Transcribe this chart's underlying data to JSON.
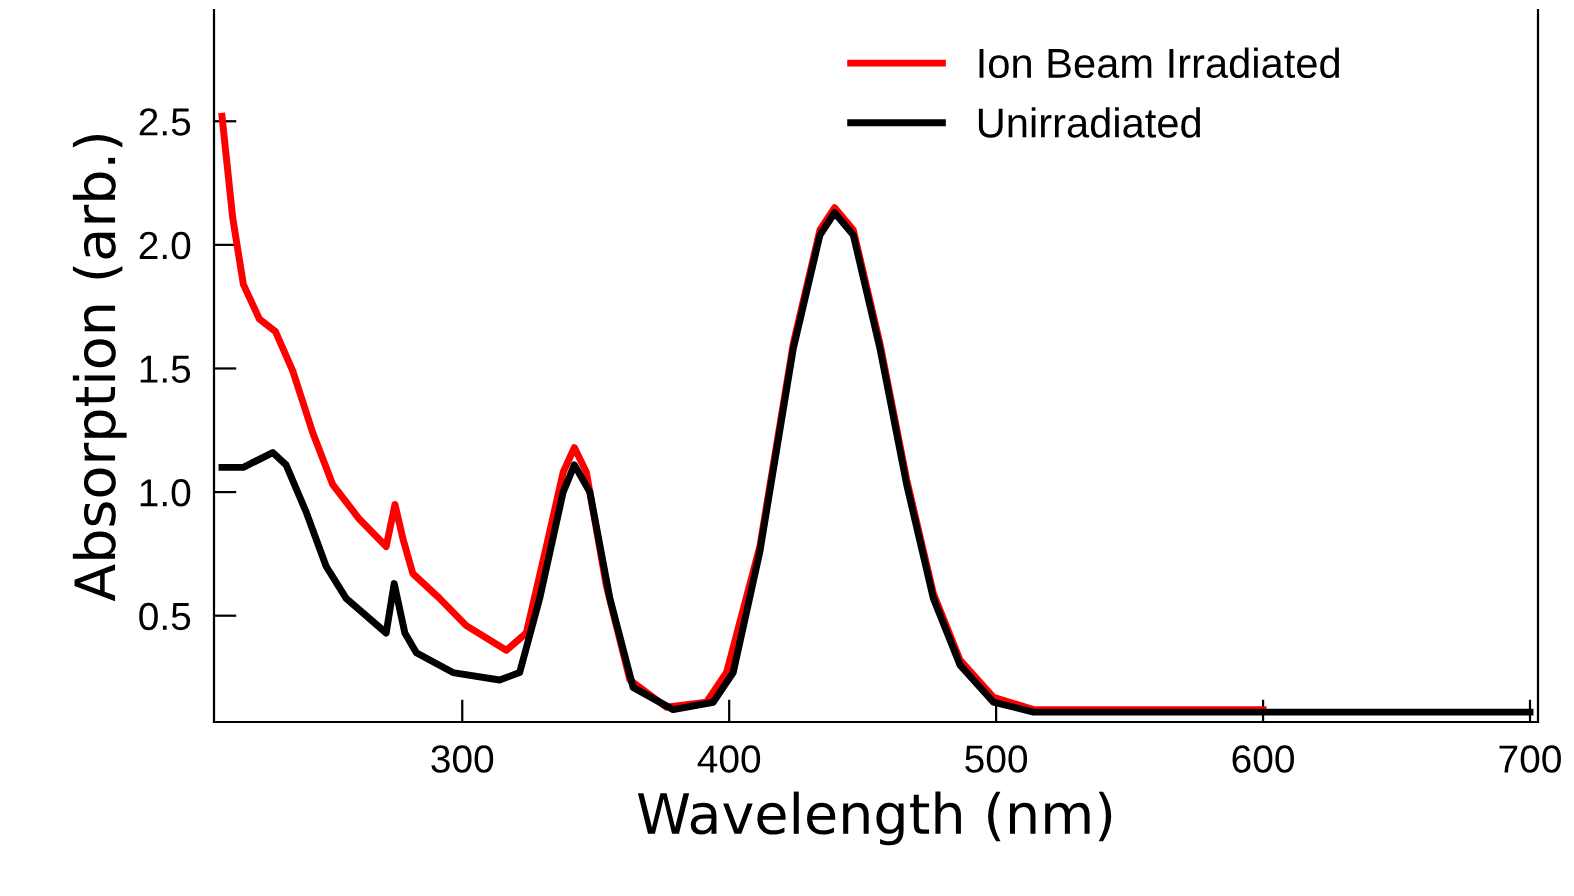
{
  "chart_data": {
    "type": "line",
    "xlabel": "Wavelength (nm)",
    "ylabel": "Absorption (arb.)",
    "xlim": [
      207,
      703
    ],
    "ylim": [
      0.07,
      2.95
    ],
    "xticks": [
      300,
      400,
      500,
      600,
      700
    ],
    "yticks": [
      0.5,
      {
        "value": 1,
        "label": "1.0"
      },
      1.5,
      {
        "value": 2,
        "label": "2.0"
      },
      2.5
    ],
    "grid": false,
    "legend": "top right",
    "marker": "none",
    "line_style": "solid",
    "series": [
      {
        "name": "Ion Beam Irradiated",
        "color": "#ff0000",
        "x": [
          210,
          214,
          218,
          224,
          230,
          236.5,
          244,
          251.5,
          261.5,
          271.5,
          274.8,
          277.8,
          281.5,
          291.5,
          301.5,
          316.5,
          324,
          331.5,
          337.8,
          342,
          346.5,
          354,
          362.8,
          376.5,
          391.5,
          399,
          411.5,
          424,
          434,
          439.5,
          446.5,
          456.5,
          466.5,
          476.5,
          486.5,
          499,
          514,
          600
        ],
        "values": [
          2.52,
          2.11,
          1.84,
          1.7,
          1.65,
          1.49,
          1.24,
          1.03,
          0.89,
          0.78,
          0.95,
          0.81,
          0.67,
          0.57,
          0.46,
          0.36,
          0.43,
          0.78,
          1.08,
          1.18,
          1.08,
          0.62,
          0.24,
          0.13,
          0.15,
          0.27,
          0.78,
          1.6,
          2.06,
          2.15,
          2.06,
          1.6,
          1.05,
          0.59,
          0.32,
          0.17,
          0.12,
          0.12
        ]
      },
      {
        "name": "Unirradiated",
        "color": "#000000",
        "x": [
          210,
          218,
          229,
          234,
          241.5,
          249,
          256.5,
          271.5,
          274.5,
          278.5,
          282.8,
          296.5,
          314,
          321.5,
          329,
          337.8,
          342,
          347.8,
          355.3,
          364,
          379,
          394,
          401.5,
          411.5,
          424,
          434,
          439.5,
          446.5,
          456.5,
          466.5,
          476.5,
          486.5,
          499,
          514,
          700
        ],
        "values": [
          1.1,
          1.1,
          1.16,
          1.11,
          0.92,
          0.7,
          0.57,
          0.43,
          0.63,
          0.43,
          0.35,
          0.27,
          0.24,
          0.27,
          0.57,
          1.0,
          1.11,
          1.0,
          0.57,
          0.21,
          0.12,
          0.15,
          0.27,
          0.76,
          1.58,
          2.04,
          2.13,
          2.04,
          1.58,
          1.03,
          0.57,
          0.3,
          0.15,
          0.11,
          0.11
        ]
      }
    ]
  }
}
